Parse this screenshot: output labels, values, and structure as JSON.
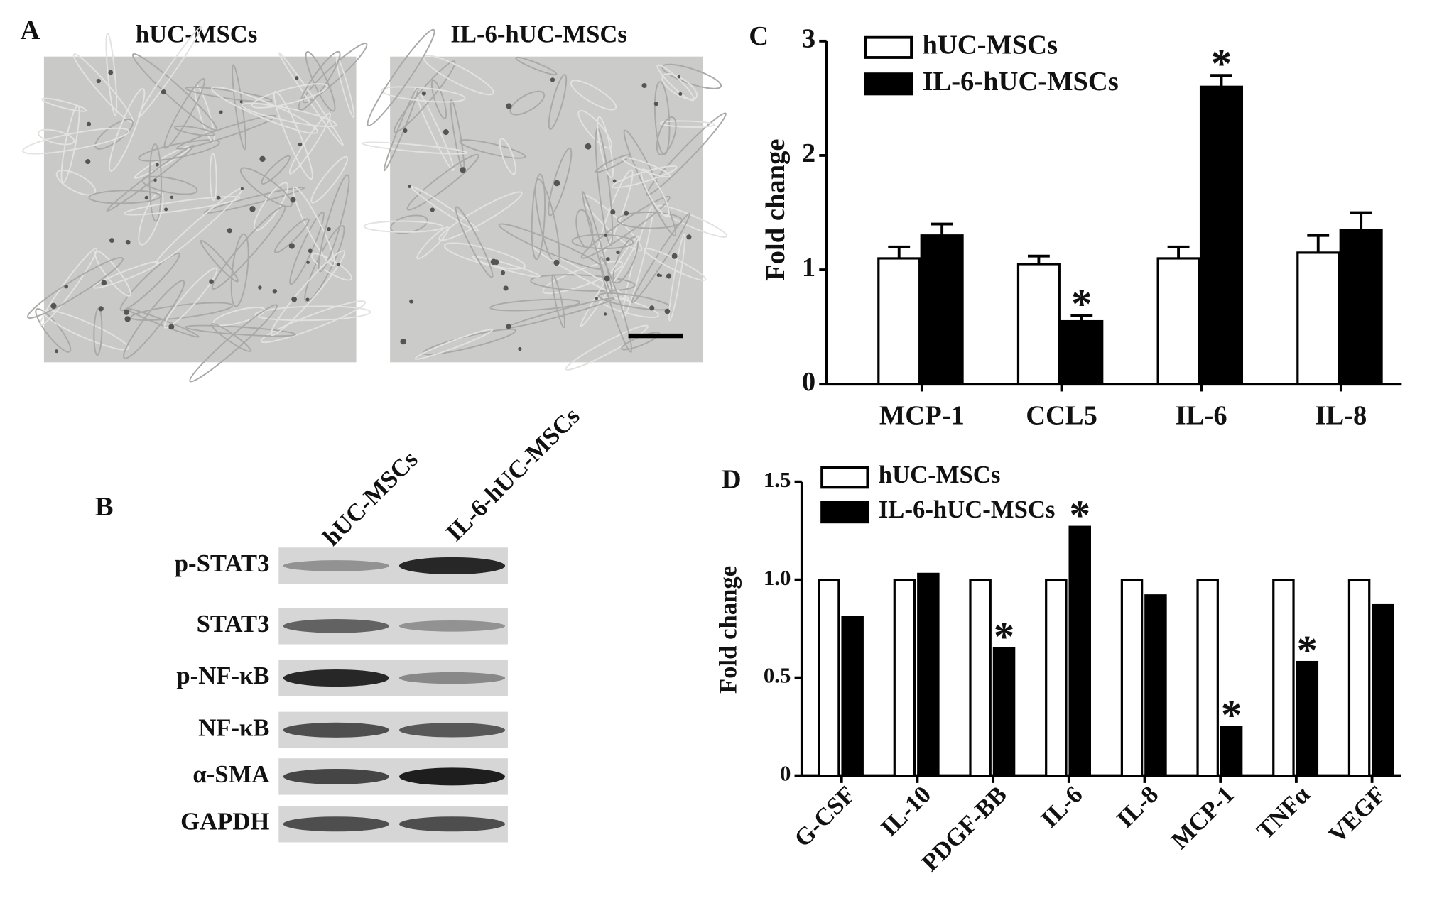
{
  "panel_a": {
    "label": "A",
    "images": [
      {
        "title": "hUC-MSCs"
      },
      {
        "title": "IL-6-hUC-MSCs"
      }
    ]
  },
  "panel_b": {
    "label": "B",
    "columns": [
      "hUC-MSCs",
      "IL-6-hUC-MSCs"
    ],
    "rows": [
      "p-STAT3",
      "STAT3",
      "p-NF-κB",
      "NF-κB",
      "α-SMA",
      "GAPDH"
    ]
  },
  "chart_data": [
    {
      "type": "bar",
      "panel_label": "C",
      "ylabel": "Fold change",
      "categories": [
        "MCP-1",
        "CCL5",
        "IL-6",
        "IL-8"
      ],
      "series": [
        {
          "name": "hUC-MSCs",
          "color": "#ffffff",
          "values": [
            1.1,
            1.05,
            1.1,
            1.15
          ],
          "errors": [
            0.1,
            0.07,
            0.1,
            0.15
          ],
          "significance": [
            null,
            null,
            null,
            null
          ]
        },
        {
          "name": "IL-6-hUC-MSCs",
          "color": "#000000",
          "values": [
            1.3,
            0.55,
            2.6,
            1.35
          ],
          "errors": [
            0.1,
            0.05,
            0.1,
            0.15
          ],
          "significance": [
            null,
            "*",
            "*",
            null
          ]
        }
      ],
      "ylim": [
        0,
        3
      ],
      "yticks": [
        0,
        1,
        2,
        3
      ],
      "legend": "upper left"
    },
    {
      "type": "bar",
      "panel_label": "D",
      "ylabel": "Fold change",
      "categories": [
        "G-CSF",
        "IL-10",
        "PDGF-BB",
        "IL-6",
        "IL-8",
        "MCP-1",
        "TNFα",
        "VEGF"
      ],
      "series": [
        {
          "name": "hUC-MSCs",
          "color": "#ffffff",
          "values": [
            1,
            1,
            1,
            1,
            1,
            1,
            1,
            1
          ],
          "significance": [
            null,
            null,
            null,
            null,
            null,
            null,
            null,
            null
          ]
        },
        {
          "name": "IL-6-hUC-MSCs",
          "color": "#000000",
          "values": [
            0.81,
            1.03,
            0.65,
            1.27,
            0.92,
            0.25,
            0.58,
            0.87
          ],
          "significance": [
            null,
            null,
            "*",
            "*",
            null,
            "*",
            "*",
            null
          ]
        }
      ],
      "ylim": [
        0,
        1.5
      ],
      "yticks": [
        0,
        0.5,
        {
          "value": 1,
          "label": "1.0"
        },
        1.5
      ],
      "legend": "upper left"
    }
  ]
}
